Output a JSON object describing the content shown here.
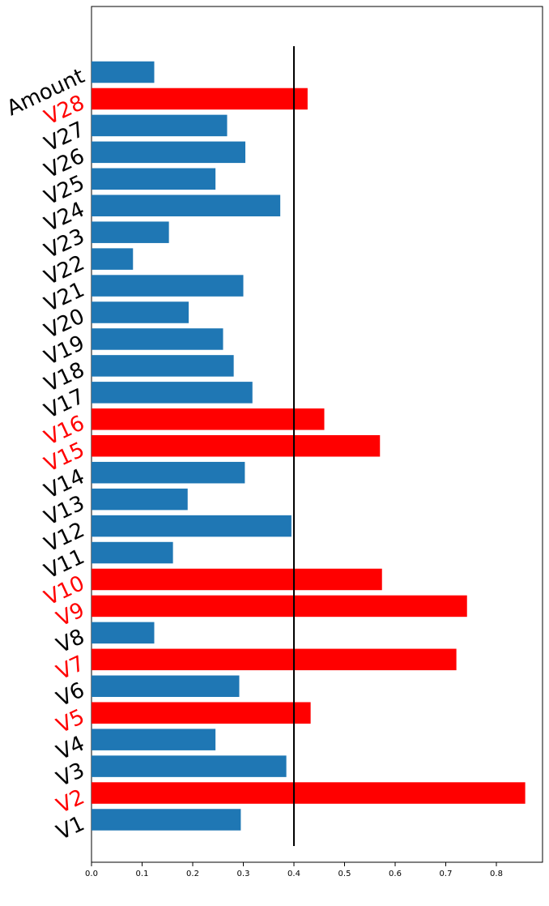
{
  "chart_data": {
    "type": "bar",
    "orientation": "horizontal",
    "categories": [
      "V1",
      "V2",
      "V3",
      "V4",
      "V5",
      "V6",
      "V7",
      "V8",
      "V9",
      "V10",
      "V11",
      "V12",
      "V13",
      "V14",
      "V15",
      "V16",
      "V17",
      "V18",
      "V19",
      "V20",
      "V21",
      "V22",
      "V23",
      "V24",
      "V25",
      "V26",
      "V27",
      "V28",
      "Amount"
    ],
    "values": [
      0.295,
      0.857,
      0.385,
      0.245,
      0.433,
      0.292,
      0.721,
      0.124,
      0.742,
      0.574,
      0.161,
      0.395,
      0.19,
      0.303,
      0.57,
      0.46,
      0.318,
      0.281,
      0.26,
      0.192,
      0.3,
      0.082,
      0.153,
      0.373,
      0.245,
      0.304,
      0.268,
      0.427,
      0.124
    ],
    "highlighted": [
      "V2",
      "V5",
      "V7",
      "V9",
      "V10",
      "V15",
      "V16",
      "V28"
    ],
    "threshold": 0.4,
    "title": "",
    "xlabel": "",
    "ylabel": "",
    "xlim": [
      0,
      0.9
    ],
    "xticks": [
      "0.0",
      "0.1",
      "0.2",
      "0.3",
      "0.4",
      "0.5",
      "0.6",
      "0.7",
      "0.8"
    ],
    "grid": false,
    "legend": "none",
    "colors": {
      "bar": "#1f77b4",
      "highlight": "#ff0000",
      "label": "#000000",
      "label_highlight": "#ff0000",
      "threshold_line": "#000000"
    }
  }
}
